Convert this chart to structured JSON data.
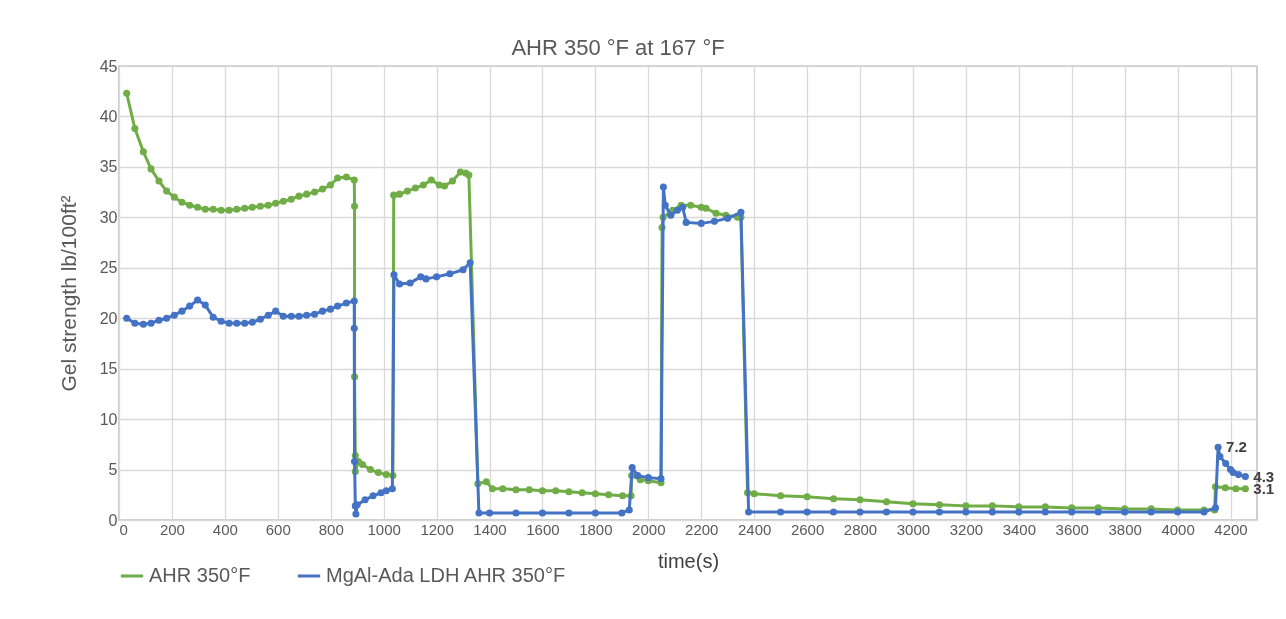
{
  "chart_data": {
    "type": "line",
    "title": "AHR 350 °F at 167 °F",
    "xlabel": "time(s)",
    "ylabel": "Gel strength lb/100ft²",
    "xlim": [
      0,
      4300
    ],
    "xticks": [
      0,
      200,
      400,
      600,
      800,
      1000,
      1200,
      1400,
      1600,
      1800,
      2000,
      2200,
      2400,
      2600,
      2800,
      3000,
      3200,
      3400,
      3600,
      3800,
      4000,
      4200
    ],
    "ylim": [
      0,
      45
    ],
    "yticks": [
      0,
      5,
      10,
      15,
      20,
      25,
      30,
      35,
      40,
      45
    ],
    "grid": true,
    "legend": "bottom",
    "marker": "circle",
    "line_style": "solid",
    "series": [
      {
        "name": "AHR 350°F",
        "color": "#70ad47",
        "x": [
          29,
          60,
          92,
          121,
          151,
          180,
          209,
          238,
          267,
          297,
          326,
          356,
          386,
          416,
          445,
          475,
          504,
          534,
          564,
          592,
          621,
          651,
          680,
          709,
          739,
          769,
          799,
          826,
          859,
          889,
          890,
          890,
          893,
          893,
          905,
          920,
          950,
          980,
          1010,
          1035,
          1038,
          1060,
          1090,
          1120,
          1150,
          1180,
          1210,
          1230,
          1260,
          1290,
          1310,
          1322,
          1356,
          1388,
          1411,
          1450,
          1500,
          1550,
          1600,
          1650,
          1700,
          1750,
          1800,
          1850,
          1903,
          1935,
          1937,
          1970,
          2000,
          2048,
          2052,
          2056,
          2092,
          2124,
          2160,
          2200,
          2218,
          2256,
          2293,
          2337,
          2350,
          2375,
          2400,
          2500,
          2600,
          2700,
          2800,
          2900,
          3000,
          3100,
          3200,
          3300,
          3400,
          3500,
          3600,
          3700,
          3800,
          3900,
          4000,
          4100,
          4140,
          4143,
          4180,
          4220,
          4256
        ],
        "value_labels": [
          null,
          null,
          null,
          null,
          null,
          null,
          null,
          null,
          null,
          null,
          null,
          null,
          null,
          null,
          null,
          null,
          null,
          null,
          null,
          null,
          null,
          null,
          null,
          null,
          null,
          null,
          null,
          null,
          null,
          null,
          null,
          null,
          null,
          null,
          null,
          null,
          null,
          null,
          null,
          null,
          null,
          null,
          null,
          null,
          null,
          null,
          null,
          null,
          null,
          null,
          null,
          null,
          null,
          null,
          null,
          null,
          null,
          null,
          null,
          null,
          null,
          null,
          null,
          null,
          null,
          null,
          null,
          null,
          null,
          null,
          null,
          null,
          null,
          null,
          null,
          null,
          null,
          null,
          null,
          null,
          null,
          null,
          null,
          null,
          null,
          null,
          null,
          null,
          null,
          null,
          null,
          null,
          null,
          null,
          null,
          null,
          null,
          null,
          null,
          null,
          null,
          null,
          null,
          null,
          "3.1"
        ],
        "values": [
          42.3,
          38.8,
          36.5,
          34.8,
          33.6,
          32.6,
          32.0,
          31.5,
          31.2,
          31.0,
          30.8,
          30.8,
          30.7,
          30.7,
          30.8,
          30.9,
          31.0,
          31.1,
          31.2,
          31.4,
          31.6,
          31.8,
          32.1,
          32.3,
          32.5,
          32.8,
          33.2,
          33.9,
          34.0,
          33.7,
          31.1,
          14.2,
          6.4,
          4.8,
          5.8,
          5.5,
          5.0,
          4.7,
          4.5,
          4.4,
          32.2,
          32.3,
          32.6,
          32.9,
          33.2,
          33.7,
          33.2,
          33.1,
          33.6,
          34.5,
          34.4,
          34.2,
          3.6,
          3.8,
          3.1,
          3.1,
          3.0,
          3.0,
          2.9,
          2.9,
          2.8,
          2.7,
          2.6,
          2.5,
          2.4,
          2.4,
          4.4,
          4.0,
          3.9,
          3.7,
          29.0,
          30.0,
          30.7,
          31.2,
          31.2,
          31.0,
          30.9,
          30.4,
          30.2,
          30.0,
          30.0,
          2.7,
          2.6,
          2.4,
          2.3,
          2.1,
          2.0,
          1.8,
          1.6,
          1.5,
          1.4,
          1.4,
          1.3,
          1.3,
          1.2,
          1.2,
          1.1,
          1.1,
          1.0,
          1.0,
          1.0,
          3.3,
          3.2,
          3.1,
          3.1
        ]
      },
      {
        "name": "MgAl-Ada LDH AHR 350°F",
        "color": "#4472c4",
        "x": [
          29,
          60,
          92,
          121,
          151,
          180,
          209,
          238,
          267,
          297,
          326,
          356,
          386,
          416,
          445,
          475,
          504,
          534,
          564,
          592,
          621,
          651,
          680,
          709,
          739,
          769,
          799,
          826,
          859,
          889,
          889,
          890,
          893,
          895,
          900,
          930,
          960,
          990,
          1010,
          1033,
          1039,
          1060,
          1100,
          1140,
          1160,
          1200,
          1250,
          1300,
          1327,
          1360,
          1400,
          1500,
          1600,
          1700,
          1800,
          1900,
          1928,
          1939,
          1960,
          2000,
          2048,
          2057,
          2064,
          2085,
          2110,
          2130,
          2143,
          2200,
          2250,
          2300,
          2350,
          2379,
          2500,
          2600,
          2700,
          2800,
          2900,
          3000,
          3100,
          3200,
          3300,
          3400,
          3500,
          3600,
          3700,
          3800,
          3900,
          4000,
          4100,
          4143,
          4153,
          4160,
          4182,
          4200,
          4210,
          4230,
          4256
        ],
        "value_labels": [
          null,
          null,
          null,
          null,
          null,
          null,
          null,
          null,
          null,
          null,
          null,
          null,
          null,
          null,
          null,
          null,
          null,
          null,
          null,
          null,
          null,
          null,
          null,
          null,
          null,
          null,
          null,
          null,
          null,
          null,
          null,
          null,
          null,
          null,
          null,
          null,
          null,
          null,
          null,
          null,
          null,
          null,
          null,
          null,
          null,
          null,
          null,
          null,
          null,
          null,
          null,
          null,
          null,
          null,
          null,
          null,
          null,
          null,
          null,
          null,
          null,
          null,
          null,
          null,
          null,
          null,
          null,
          null,
          null,
          null,
          null,
          null,
          null,
          null,
          null,
          null,
          null,
          null,
          null,
          null,
          null,
          null,
          null,
          null,
          null,
          null,
          null,
          null,
          null,
          null,
          "7.2",
          null,
          null,
          null,
          null,
          null,
          "4.3"
        ],
        "values": [
          20.0,
          19.5,
          19.4,
          19.5,
          19.8,
          20.0,
          20.3,
          20.7,
          21.2,
          21.8,
          21.3,
          20.1,
          19.7,
          19.5,
          19.5,
          19.5,
          19.6,
          19.9,
          20.3,
          20.7,
          20.2,
          20.2,
          20.2,
          20.3,
          20.4,
          20.7,
          20.9,
          21.2,
          21.5,
          21.7,
          19.0,
          5.8,
          1.4,
          0.6,
          1.5,
          2.0,
          2.4,
          2.7,
          2.9,
          3.1,
          24.3,
          23.4,
          23.5,
          24.1,
          23.9,
          24.1,
          24.4,
          24.8,
          25.5,
          0.7,
          0.7,
          0.7,
          0.7,
          0.7,
          0.7,
          0.7,
          1.0,
          5.2,
          4.4,
          4.2,
          4.1,
          33.0,
          31.2,
          30.2,
          30.7,
          31.0,
          29.5,
          29.4,
          29.6,
          29.9,
          30.5,
          0.8,
          0.8,
          0.8,
          0.8,
          0.8,
          0.8,
          0.8,
          0.8,
          0.8,
          0.8,
          0.8,
          0.8,
          0.8,
          0.8,
          0.8,
          0.8,
          0.8,
          0.8,
          1.2,
          7.2,
          6.3,
          5.6,
          5.0,
          4.7,
          4.5,
          4.3
        ]
      }
    ]
  }
}
